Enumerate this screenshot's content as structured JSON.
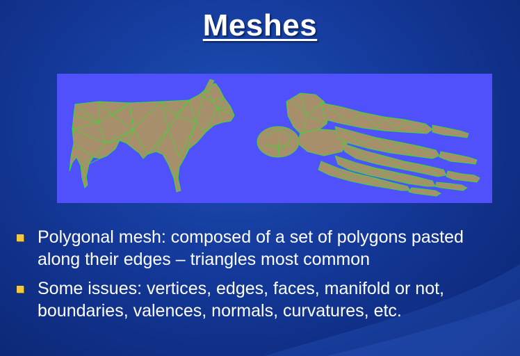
{
  "slide": {
    "title": "Meshes",
    "figure": {
      "background_color": "#5151fc",
      "mesh_fill_color": "#a88f6c",
      "mesh_edge_color": "#2fe02f",
      "models": [
        "cow-mesh",
        "foot-bones-mesh"
      ]
    },
    "bullets": [
      {
        "text": "Polygonal mesh: composed of a set of polygons pasted along their edges – triangles most common"
      },
      {
        "text": "Some issues: vertices, edges, faces, manifold or not, boundaries, valences, normals, curvatures, etc."
      }
    ],
    "colors": {
      "background": "#14399a",
      "bullet_marker": "#f5c842",
      "text": "#ffffff"
    }
  }
}
